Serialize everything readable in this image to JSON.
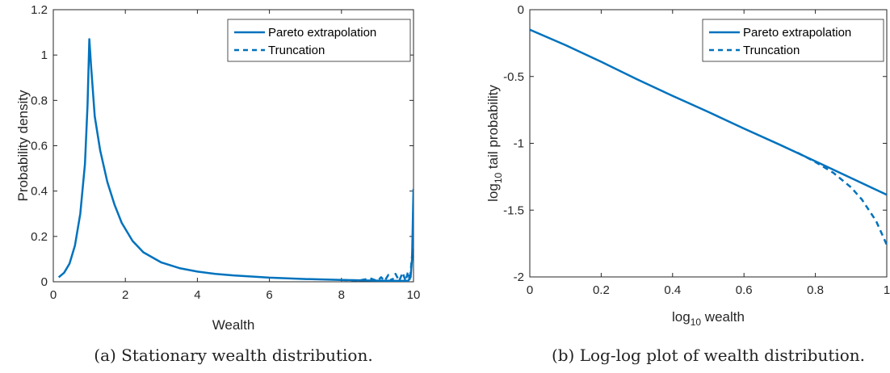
{
  "chart_data": [
    {
      "type": "line",
      "caption": "(a) Stationary wealth distribution.",
      "xlabel": "Wealth",
      "ylabel": "Probability density",
      "xlim": [
        0,
        10
      ],
      "ylim": [
        0,
        1.2
      ],
      "xticks": [
        0,
        2,
        4,
        6,
        8,
        10
      ],
      "xtick_labels": [
        "0",
        "2",
        "4",
        "6",
        "8",
        "10"
      ],
      "yticks": [
        0,
        0.2,
        0.4,
        0.6,
        0.8,
        1,
        1.2
      ],
      "ytick_labels": [
        "0",
        "0.2",
        "0.4",
        "0.6",
        "0.8",
        "1",
        "1.2"
      ],
      "legend_position": "top-right",
      "series": [
        {
          "name": "Pareto extrapolation",
          "style": "solid",
          "color": "#0072BD",
          "x": [
            0.15,
            0.3,
            0.45,
            0.6,
            0.75,
            0.88,
            0.95,
            1.0,
            1.05,
            1.15,
            1.3,
            1.5,
            1.7,
            1.9,
            2.2,
            2.5,
            3.0,
            3.5,
            4.0,
            4.5,
            5.0,
            6.0,
            7.0,
            8.0,
            9.0,
            9.6,
            9.85,
            9.92,
            9.96,
            10.0
          ],
          "y": [
            0.02,
            0.04,
            0.08,
            0.16,
            0.3,
            0.52,
            0.78,
            1.07,
            0.95,
            0.73,
            0.58,
            0.44,
            0.34,
            0.26,
            0.18,
            0.13,
            0.085,
            0.06,
            0.045,
            0.035,
            0.028,
            0.018,
            0.012,
            0.008,
            0.005,
            0.004,
            0.004,
            0.02,
            0.1,
            0.41
          ]
        },
        {
          "name": "Truncation",
          "style": "dashed",
          "color": "#0072BD",
          "x": [
            8.0,
            8.5,
            8.8,
            9.0,
            9.1,
            9.2,
            9.3,
            9.4,
            9.5,
            9.6,
            9.7,
            9.78,
            9.85,
            9.9,
            9.95,
            10.0
          ],
          "y": [
            0.008,
            0.006,
            0.015,
            0.004,
            0.02,
            0.004,
            0.03,
            0.004,
            0.035,
            0.004,
            0.04,
            0.004,
            0.045,
            0.004,
            0.1,
            0.18
          ]
        }
      ]
    },
    {
      "type": "line",
      "caption": "(b) Log-log plot of wealth distribution.",
      "xlabel_main": "log",
      "xlabel_sub": "10",
      "xlabel_rest": " wealth",
      "ylabel_main": "log",
      "ylabel_sub": "10",
      "ylabel_rest": " tail probability",
      "xlim": [
        0,
        1
      ],
      "ylim": [
        -2,
        0
      ],
      "xticks": [
        0,
        0.2,
        0.4,
        0.6,
        0.8,
        1
      ],
      "xtick_labels": [
        "0",
        "0.2",
        "0.4",
        "0.6",
        "0.8",
        "1"
      ],
      "yticks": [
        -2,
        -1.5,
        -1,
        -0.5,
        0
      ],
      "ytick_labels": [
        "-2",
        "-1.5",
        "-1",
        "-0.5",
        "0"
      ],
      "legend_position": "top-right",
      "series": [
        {
          "name": "Pareto extrapolation",
          "style": "solid",
          "color": "#0072BD",
          "x": [
            0,
            0.1,
            0.2,
            0.3,
            0.4,
            0.5,
            0.6,
            0.7,
            0.8,
            0.9,
            1.0
          ],
          "y": [
            -0.15,
            -0.265,
            -0.39,
            -0.52,
            -0.645,
            -0.765,
            -0.89,
            -1.01,
            -1.135,
            -1.26,
            -1.385
          ]
        },
        {
          "name": "Truncation",
          "style": "dashed",
          "color": "#0072BD",
          "x": [
            0.75,
            0.8,
            0.85,
            0.9,
            0.93,
            0.95,
            0.97,
            0.99,
            1.0
          ],
          "y": [
            -1.07,
            -1.14,
            -1.22,
            -1.33,
            -1.42,
            -1.5,
            -1.58,
            -1.7,
            -1.76
          ]
        }
      ]
    }
  ]
}
